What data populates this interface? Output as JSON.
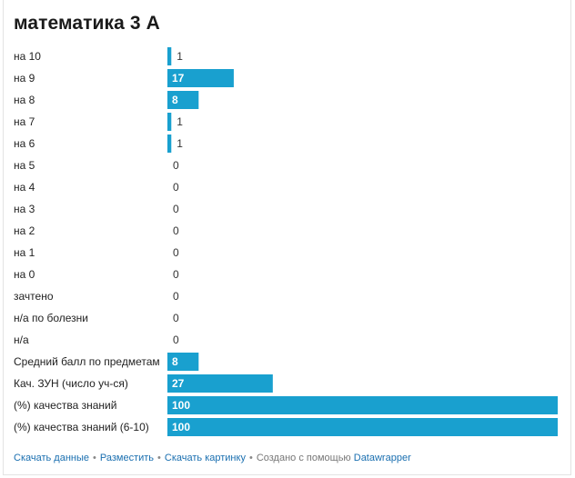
{
  "title": "математика 3 А",
  "colors": {
    "bar": "#19a0cf",
    "label_text": "#222222",
    "value_outside": "#333333",
    "value_inside": "#ffffff",
    "link": "#1a6fb0"
  },
  "chart_data": {
    "type": "bar",
    "orientation": "horizontal",
    "title": "математика 3 А",
    "categories": [
      "на 10",
      "на 9",
      "на 8",
      "на 7",
      "на 6",
      "на 5",
      "на 4",
      "на 3",
      "на 2",
      "на 1",
      "на 0",
      "зачтено",
      "н/а по болезни",
      "н/а",
      "Средний балл по предметам",
      "Кач. ЗУН (число уч-ся)",
      "(%) качества знаний",
      "(%) качества знаний (6-10)"
    ],
    "values": [
      1,
      17,
      8,
      1,
      1,
      0,
      0,
      0,
      0,
      0,
      0,
      0,
      0,
      0,
      8,
      27,
      100,
      100
    ],
    "xlim": [
      0,
      100
    ],
    "grid": false,
    "value_labels": true
  },
  "footer": {
    "download_data": "Скачать данные",
    "embed": "Разместить",
    "download_image": "Скачать картинку",
    "created_with": "Создано с помощью",
    "datawrapper": "Datawrapper",
    "separator": "•"
  }
}
